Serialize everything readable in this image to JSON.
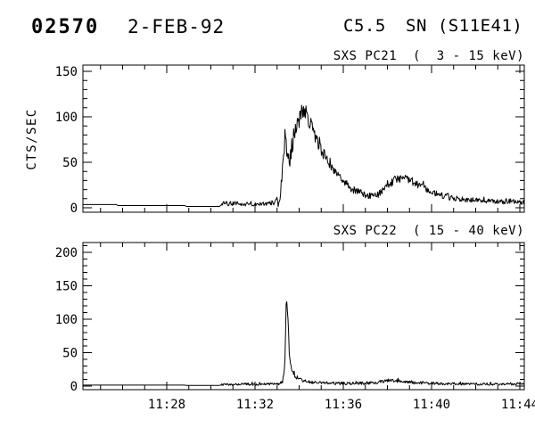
{
  "header": {
    "event_number": "02570",
    "date": "2-FEB-92",
    "goes_class": "C5.5",
    "flare_type_location": "SN (S11E41)"
  },
  "colors": {
    "foreground": "#000000",
    "background": "#ffffff"
  },
  "chart_data": [
    {
      "type": "line",
      "title": "SXS PC21  (  3 - 15 keV)",
      "ylabel": "CTS/SEC",
      "xlabel": "",
      "x_domain_minutes_after_11": [
        24.2,
        44.2
      ],
      "ylim": [
        0,
        150
      ],
      "yticks": [
        0,
        50,
        100,
        150
      ],
      "y_minor_step": 10,
      "xticks": [
        {
          "minute": 28,
          "label": "11:28"
        },
        {
          "minute": 32,
          "label": "11:32"
        },
        {
          "minute": 36,
          "label": "11:36"
        },
        {
          "minute": 40,
          "label": "11:40"
        },
        {
          "minute": 44,
          "label": "11:44"
        }
      ],
      "x_minor_step_minutes": 1,
      "grid": false,
      "legend": null,
      "profile_keypoints_t_v": [
        [
          24.2,
          3.5
        ],
        [
          25.7,
          3.5
        ],
        [
          25.8,
          2.5
        ],
        [
          28.8,
          2.5
        ],
        [
          28.9,
          1.5
        ],
        [
          30.4,
          1.5
        ],
        [
          30.5,
          4.5
        ],
        [
          31.6,
          4.5
        ],
        [
          32.7,
          5
        ],
        [
          33.05,
          6
        ],
        [
          33.15,
          12
        ],
        [
          33.3,
          55
        ],
        [
          33.37,
          88
        ],
        [
          33.45,
          55
        ],
        [
          33.55,
          52
        ],
        [
          33.7,
          72
        ],
        [
          33.85,
          88
        ],
        [
          34.0,
          97
        ],
        [
          34.1,
          104
        ],
        [
          34.2,
          108
        ],
        [
          34.35,
          103
        ],
        [
          34.5,
          93
        ],
        [
          34.7,
          80
        ],
        [
          34.9,
          70
        ],
        [
          35.1,
          60
        ],
        [
          35.3,
          52
        ],
        [
          35.55,
          43
        ],
        [
          35.8,
          36
        ],
        [
          36.0,
          29
        ],
        [
          36.2,
          24
        ],
        [
          36.5,
          19
        ],
        [
          36.8,
          16
        ],
        [
          37.1,
          13.5
        ],
        [
          37.4,
          13
        ],
        [
          37.7,
          16
        ],
        [
          38.0,
          23
        ],
        [
          38.3,
          30
        ],
        [
          38.6,
          33
        ],
        [
          38.9,
          31
        ],
        [
          39.2,
          28
        ],
        [
          39.6,
          23
        ],
        [
          40.0,
          18
        ],
        [
          40.4,
          14
        ],
        [
          40.9,
          11
        ],
        [
          41.4,
          9.5
        ],
        [
          42.1,
          8
        ],
        [
          42.9,
          7
        ],
        [
          43.6,
          6.5
        ],
        [
          44.2,
          6
        ]
      ],
      "noise_amp_keypoints_t_a": [
        [
          24.2,
          0
        ],
        [
          30.45,
          0
        ],
        [
          30.5,
          2.5
        ],
        [
          32.9,
          2.8
        ],
        [
          33.1,
          6
        ],
        [
          33.3,
          11
        ],
        [
          33.7,
          10
        ],
        [
          34.1,
          9
        ],
        [
          34.6,
          8
        ],
        [
          35.2,
          7
        ],
        [
          36.0,
          5
        ],
        [
          36.8,
          4
        ],
        [
          37.4,
          3.5
        ],
        [
          38.2,
          5
        ],
        [
          39.0,
          4.5
        ],
        [
          40.0,
          3.5
        ],
        [
          41.0,
          3
        ],
        [
          42.0,
          2.8
        ],
        [
          44.2,
          2.5
        ]
      ]
    },
    {
      "type": "line",
      "title": "SXS PC22  ( 15 - 40 keV)",
      "ylabel": "",
      "xlabel": "",
      "x_domain_minutes_after_11": [
        24.2,
        44.2
      ],
      "ylim": [
        0,
        200
      ],
      "yticks": [
        0,
        50,
        100,
        150,
        200
      ],
      "y_minor_step": 10,
      "xticks": [
        {
          "minute": 28,
          "label": "11:28"
        },
        {
          "minute": 32,
          "label": "11:32"
        },
        {
          "minute": 36,
          "label": "11:36"
        },
        {
          "minute": 40,
          "label": "11:40"
        },
        {
          "minute": 44,
          "label": "11:44"
        }
      ],
      "x_minor_step_minutes": 1,
      "grid": false,
      "legend": null,
      "profile_keypoints_t_v": [
        [
          24.2,
          1.5
        ],
        [
          28.8,
          1.5
        ],
        [
          28.9,
          1
        ],
        [
          30.4,
          1
        ],
        [
          30.5,
          2.5
        ],
        [
          32.8,
          3
        ],
        [
          33.1,
          3.5
        ],
        [
          33.25,
          6
        ],
        [
          33.35,
          30
        ],
        [
          33.42,
          138
        ],
        [
          33.5,
          95
        ],
        [
          33.56,
          45
        ],
        [
          33.65,
          26
        ],
        [
          33.8,
          16
        ],
        [
          33.95,
          11
        ],
        [
          34.2,
          8
        ],
        [
          34.5,
          6
        ],
        [
          35.0,
          5
        ],
        [
          35.8,
          4
        ],
        [
          36.8,
          4
        ],
        [
          37.4,
          5
        ],
        [
          37.8,
          7
        ],
        [
          38.1,
          9
        ],
        [
          38.4,
          8
        ],
        [
          38.8,
          6
        ],
        [
          39.3,
          5
        ],
        [
          39.9,
          4
        ],
        [
          40.6,
          3.5
        ],
        [
          41.6,
          3
        ],
        [
          44.2,
          3
        ]
      ],
      "noise_amp_keypoints_t_a": [
        [
          24.2,
          0
        ],
        [
          30.45,
          0
        ],
        [
          30.5,
          1.8
        ],
        [
          33.1,
          2
        ],
        [
          33.5,
          3.5
        ],
        [
          34.0,
          2.5
        ],
        [
          35.0,
          2
        ],
        [
          37.5,
          2.5
        ],
        [
          38.5,
          2.5
        ],
        [
          39.5,
          2
        ],
        [
          44.2,
          1.8
        ]
      ]
    }
  ]
}
